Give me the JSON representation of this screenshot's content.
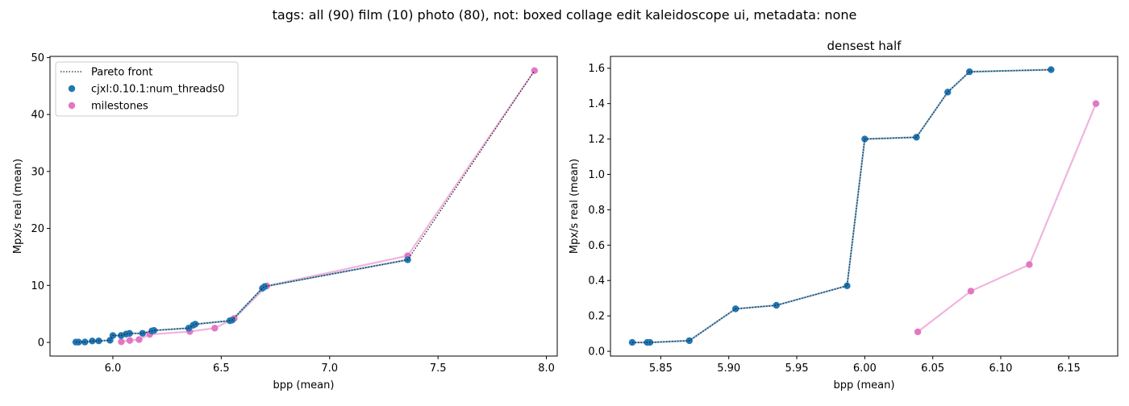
{
  "figure": {
    "suptitle": "tags: all (90) film (10) photo (80), not: boxed collage edit kaleidoscope ui, metadata: none"
  },
  "colors": {
    "series_main": "#1f77b4",
    "series_milestones": "#e377c2",
    "milestones_line": "#f0b4de",
    "pareto": "#222222"
  },
  "chart_data": [
    {
      "type": "scatter",
      "title": "",
      "xlabel": "bpp (mean)",
      "ylabel": "Mpx/s real (mean)",
      "xlim": [
        5.71,
        8.05
      ],
      "ylim": [
        -2.4,
        50.2
      ],
      "xticks": [
        6.0,
        6.5,
        7.0,
        7.5,
        8.0
      ],
      "xtick_labels": [
        "6.0",
        "6.5",
        "7.0",
        "7.5",
        "8.0"
      ],
      "yticks": [
        0,
        10,
        20,
        30,
        40,
        50
      ],
      "ytick_labels": [
        "0",
        "10",
        "20",
        "30",
        "40",
        "50"
      ],
      "grid": false,
      "legend": {
        "placement": "top-left",
        "entries": [
          "Pareto front",
          "cjxl:0.10.1:num_threads0",
          "milestones"
        ]
      },
      "series": [
        {
          "name": "cjxl:0.10.1:num_threads0",
          "points": [
            [
              5.829,
              0.05
            ],
            [
              5.84,
              0.05
            ],
            [
              5.842,
              0.05
            ],
            [
              5.871,
              0.06
            ],
            [
              5.905,
              0.24
            ],
            [
              5.935,
              0.26
            ],
            [
              5.987,
              0.37
            ],
            [
              6.0,
              1.2
            ],
            [
              6.038,
              1.21
            ],
            [
              6.061,
              1.46
            ],
            [
              6.077,
              1.58
            ],
            [
              6.137,
              1.59
            ],
            [
              6.18,
              2.0
            ],
            [
              6.19,
              2.1
            ],
            [
              6.35,
              2.5
            ],
            [
              6.37,
              3.0
            ],
            [
              6.38,
              3.2
            ],
            [
              6.54,
              3.8
            ],
            [
              6.55,
              3.9
            ],
            [
              6.69,
              9.5
            ],
            [
              6.7,
              9.8
            ],
            [
              7.36,
              14.5
            ]
          ]
        },
        {
          "name": "milestones",
          "points": [
            [
              6.039,
              0.11
            ],
            [
              6.078,
              0.34
            ],
            [
              6.121,
              0.49
            ],
            [
              6.17,
              1.4
            ],
            [
              6.355,
              1.9
            ],
            [
              6.47,
              2.5
            ],
            [
              6.56,
              4.2
            ],
            [
              6.71,
              9.9
            ],
            [
              7.36,
              15.2
            ],
            [
              7.945,
              47.7
            ]
          ]
        },
        {
          "name": "Pareto front",
          "points": [
            [
              5.829,
              0.05
            ],
            [
              5.84,
              0.05
            ],
            [
              5.842,
              0.05
            ],
            [
              5.871,
              0.06
            ],
            [
              5.905,
              0.24
            ],
            [
              5.935,
              0.26
            ],
            [
              5.987,
              0.37
            ],
            [
              6.0,
              1.2
            ],
            [
              6.038,
              1.21
            ],
            [
              6.061,
              1.46
            ],
            [
              6.077,
              1.58
            ],
            [
              6.137,
              1.59
            ],
            [
              6.18,
              2.0
            ],
            [
              6.19,
              2.1
            ],
            [
              6.35,
              2.5
            ],
            [
              6.37,
              3.0
            ],
            [
              6.38,
              3.2
            ],
            [
              6.54,
              3.8
            ],
            [
              6.55,
              3.9
            ],
            [
              6.69,
              9.5
            ],
            [
              6.7,
              9.8
            ],
            [
              7.36,
              14.5
            ],
            [
              7.945,
              47.7
            ]
          ]
        }
      ]
    },
    {
      "type": "scatter",
      "title": "densest half",
      "xlabel": "bpp (mean)",
      "ylabel": "Mpx/s real (mean)",
      "xlim": [
        5.813,
        6.186
      ],
      "ylim": [
        -0.027,
        1.667
      ],
      "xticks": [
        5.85,
        5.9,
        5.95,
        6.0,
        6.05,
        6.1,
        6.15
      ],
      "xtick_labels": [
        "5.85",
        "5.90",
        "5.95",
        "6.00",
        "6.05",
        "6.10",
        "6.15"
      ],
      "yticks": [
        0.0,
        0.2,
        0.4,
        0.6,
        0.8,
        1.0,
        1.2,
        1.4,
        1.6
      ],
      "ytick_labels": [
        "0.0",
        "0.2",
        "0.4",
        "0.6",
        "0.8",
        "1.0",
        "1.2",
        "1.4",
        "1.6"
      ],
      "grid": false,
      "series": [
        {
          "name": "cjxl:0.10.1:num_threads0",
          "points": [
            [
              5.829,
              0.05
            ],
            [
              5.84,
              0.05
            ],
            [
              5.842,
              0.05
            ],
            [
              5.871,
              0.06
            ],
            [
              5.905,
              0.24
            ],
            [
              5.935,
              0.26
            ],
            [
              5.987,
              0.37
            ],
            [
              6.0,
              1.2
            ],
            [
              6.038,
              1.21
            ],
            [
              6.061,
              1.465
            ],
            [
              6.077,
              1.58
            ],
            [
              6.137,
              1.592
            ]
          ]
        },
        {
          "name": "milestones",
          "points": [
            [
              6.039,
              0.11
            ],
            [
              6.078,
              0.34
            ],
            [
              6.121,
              0.49
            ],
            [
              6.17,
              1.4
            ]
          ]
        },
        {
          "name": "Pareto front",
          "points": [
            [
              5.829,
              0.05
            ],
            [
              5.84,
              0.05
            ],
            [
              5.842,
              0.05
            ],
            [
              5.871,
              0.06
            ],
            [
              5.905,
              0.24
            ],
            [
              5.935,
              0.26
            ],
            [
              5.987,
              0.37
            ],
            [
              6.0,
              1.2
            ],
            [
              6.038,
              1.21
            ],
            [
              6.061,
              1.465
            ],
            [
              6.077,
              1.58
            ],
            [
              6.137,
              1.592
            ]
          ]
        }
      ]
    }
  ]
}
